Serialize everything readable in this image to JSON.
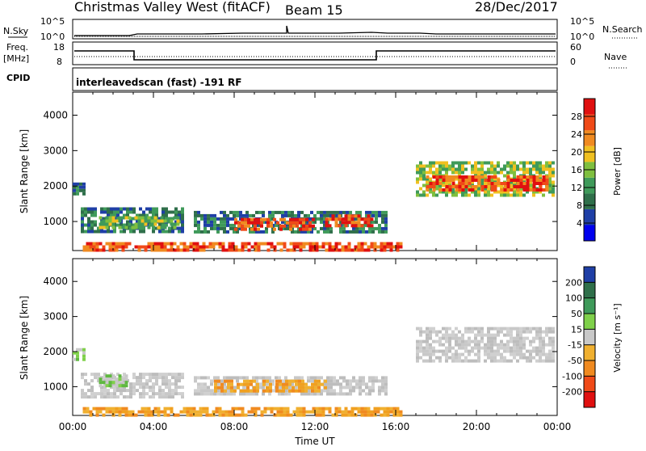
{
  "header": {
    "station": "Christmas Valley West (fitACF)",
    "beam": "Beam 15",
    "date": "28/Dec/2017"
  },
  "panels": {
    "nsky_label": "N.Sky",
    "nsky_ticks": [
      "10^5",
      "10^0"
    ],
    "nsearch_label": "N.Search",
    "nsearch_ticks": [
      "10^5",
      "10^0"
    ],
    "freq_label_top": "Freq.",
    "freq_label_bot": "[MHz]",
    "freq_ticks": [
      "18",
      "8"
    ],
    "nave_label": "Nave",
    "nave_ticks": [
      "60",
      "0"
    ],
    "cpid_label": "CPID",
    "cpid_text": "interleavedscan (fast) -191 RF"
  },
  "chart_data": [
    {
      "type": "heatmap",
      "name": "power-panel",
      "ylabel": "Slant Range [km]",
      "yticks": [
        "4000",
        "3000",
        "2000",
        "1000"
      ],
      "ytick_values": [
        4000,
        3000,
        2000,
        1000
      ],
      "ylim": [
        180,
        4650
      ],
      "xlim": [
        0,
        24
      ],
      "colorbar": {
        "label": "Power [dB]",
        "ticks": [
          "28",
          "24",
          "20",
          "16",
          "12",
          "8",
          "4"
        ],
        "tick_values": [
          28,
          24,
          20,
          16,
          12,
          8,
          4
        ],
        "range": [
          0,
          32
        ],
        "colors": [
          "#0000ee",
          "#1f3fa6",
          "#2f6f4a",
          "#3f9a5a",
          "#7fbf3f",
          "#f0c020",
          "#f08a20",
          "#f04a18",
          "#e01010"
        ]
      },
      "echo_regions": [
        {
          "t0": 0.4,
          "t1": 5.5,
          "r0": 750,
          "r1": 1400,
          "level": "low"
        },
        {
          "t0": 1.3,
          "t1": 5.2,
          "r0": 850,
          "r1": 1150,
          "level": "mid"
        },
        {
          "t0": 6.0,
          "t1": 15.5,
          "r0": 750,
          "r1": 1300,
          "level": "low"
        },
        {
          "t0": 8.0,
          "t1": 12.0,
          "r0": 800,
          "r1": 1100,
          "level": "high"
        },
        {
          "t0": 12.5,
          "t1": 14.8,
          "r0": 850,
          "r1": 1200,
          "level": "high"
        },
        {
          "t0": 0.5,
          "t1": 16.2,
          "r0": 220,
          "r1": 420,
          "level": "high"
        },
        {
          "t0": 17.0,
          "t1": 23.8,
          "r0": 1700,
          "r1": 2700,
          "level": "mid"
        },
        {
          "t0": 17.5,
          "t1": 23.5,
          "r0": 1900,
          "r1": 2300,
          "level": "high"
        },
        {
          "t0": 0.0,
          "t1": 0.6,
          "r0": 1800,
          "r1": 2100,
          "level": "low"
        }
      ]
    },
    {
      "type": "heatmap",
      "name": "velocity-panel",
      "ylabel": "Slant Range [km]",
      "yticks": [
        "4000",
        "3000",
        "2000",
        "1000"
      ],
      "ytick_values": [
        4000,
        3000,
        2000,
        1000
      ],
      "ylim": [
        180,
        4650
      ],
      "xlim": [
        0,
        24
      ],
      "xticks": [
        "00:00",
        "04:00",
        "08:00",
        "12:00",
        "16:00",
        "20:00",
        "00:00"
      ],
      "xlabel": "Time UT",
      "colorbar": {
        "label": "Velocity [m s⁻¹]",
        "ticks": [
          "200",
          "100",
          "50",
          "15",
          "-15",
          "-50",
          "-100",
          "-200"
        ],
        "tick_values": [
          200,
          100,
          50,
          15,
          -15,
          -50,
          -100,
          -200
        ],
        "colors": [
          "#1f3fa6",
          "#2f6f4a",
          "#3f9a5a",
          "#7fd04a",
          "#c8c8c8",
          "#f0b030",
          "#f08a20",
          "#f04a18",
          "#e01010"
        ]
      },
      "echo_regions": [
        {
          "t0": 0.4,
          "t1": 5.5,
          "r0": 750,
          "r1": 1400,
          "level": "gray"
        },
        {
          "t0": 1.3,
          "t1": 2.6,
          "r0": 1000,
          "r1": 1350,
          "level": "green"
        },
        {
          "t0": 6.0,
          "t1": 15.5,
          "r0": 750,
          "r1": 1300,
          "level": "gray"
        },
        {
          "t0": 7.0,
          "t1": 12.5,
          "r0": 900,
          "r1": 1200,
          "level": "orange"
        },
        {
          "t0": 0.5,
          "t1": 16.2,
          "r0": 220,
          "r1": 420,
          "level": "orange"
        },
        {
          "t0": 17.0,
          "t1": 23.8,
          "r0": 1700,
          "r1": 2700,
          "level": "gray"
        },
        {
          "t0": 0.0,
          "t1": 0.6,
          "r0": 1800,
          "r1": 2100,
          "level": "green"
        }
      ]
    }
  ]
}
